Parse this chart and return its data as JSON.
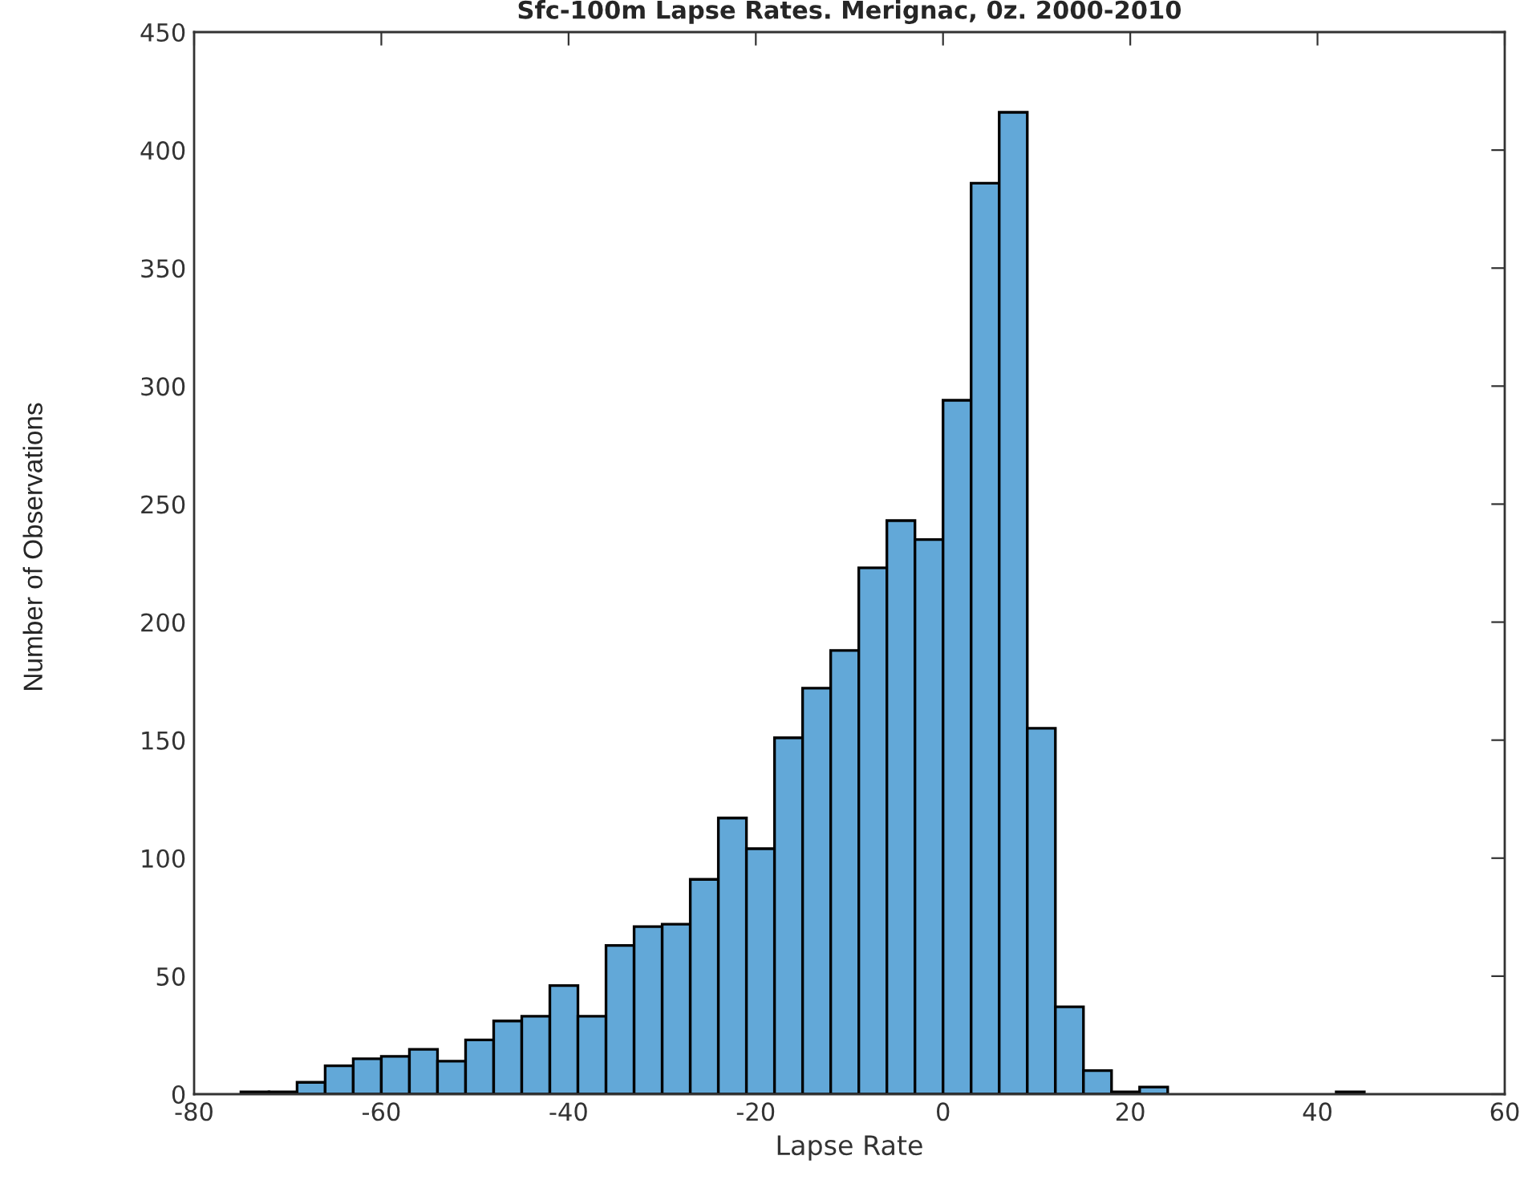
{
  "chart_data": {
    "type": "histogram",
    "title": "Sfc-100m Lapse Rates. Merignac, 0z. 2000-2010",
    "xlabel": "Lapse Rate",
    "ylabel": "Number of Observations",
    "bins": [
      -75,
      -72,
      -69,
      -66,
      -63,
      -60,
      -57,
      -54,
      -51,
      -48,
      -45,
      -42,
      -39,
      -36,
      -33,
      -30,
      -27,
      -24,
      -21,
      -18,
      -15,
      -12,
      -9,
      -6,
      -3,
      0,
      3,
      6,
      9,
      12,
      15,
      18,
      21,
      24,
      27,
      30,
      33,
      36,
      39,
      42,
      45
    ],
    "values": [
      1,
      1,
      5,
      12,
      15,
      16,
      19,
      14,
      23,
      31,
      33,
      46,
      33,
      63,
      71,
      72,
      91,
      117,
      104,
      151,
      172,
      188,
      223,
      243,
      235,
      294,
      386,
      416,
      155,
      37,
      10,
      1,
      3,
      0,
      0,
      0,
      0,
      0,
      0,
      1
    ],
    "color": "#62a8d8",
    "xlim": [
      -80,
      60
    ],
    "xticks": [
      -80,
      -60,
      -40,
      -20,
      0,
      20,
      40,
      60
    ],
    "ylim": [
      0,
      450
    ],
    "yticks": [
      0,
      50,
      100,
      150,
      200,
      250,
      300,
      350,
      400,
      450
    ],
    "grid": false,
    "legend": false
  }
}
